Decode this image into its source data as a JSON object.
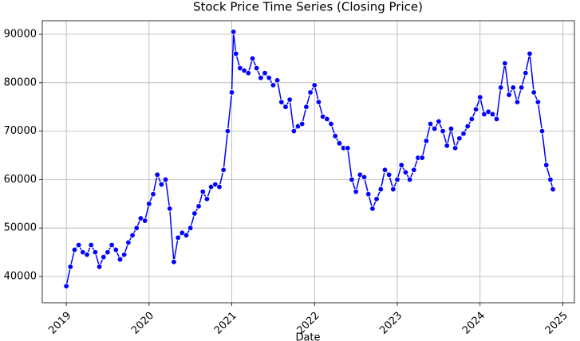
{
  "chart_data": {
    "type": "line",
    "title": "Stock Price Time Series (Closing Price)",
    "x_label": "Date",
    "x": [
      2019.0,
      2019.05,
      2019.1,
      2019.15,
      2019.2,
      2019.25,
      2019.3,
      2019.35,
      2019.4,
      2019.45,
      2019.5,
      2019.55,
      2019.6,
      2019.65,
      2019.7,
      2019.75,
      2019.8,
      2019.85,
      2019.9,
      2019.95,
      2020.0,
      2020.05,
      2020.1,
      2020.15,
      2020.2,
      2020.25,
      2020.3,
      2020.35,
      2020.4,
      2020.45,
      2020.5,
      2020.55,
      2020.6,
      2020.65,
      2020.7,
      2020.75,
      2020.8,
      2020.85,
      2020.9,
      2020.95,
      2021.0,
      2021.02,
      2021.05,
      2021.1,
      2021.15,
      2021.2,
      2021.25,
      2021.3,
      2021.35,
      2021.4,
      2021.45,
      2021.5,
      2021.55,
      2021.6,
      2021.65,
      2021.7,
      2021.75,
      2021.8,
      2021.85,
      2021.9,
      2021.95,
      2022.0,
      2022.05,
      2022.1,
      2022.15,
      2022.2,
      2022.25,
      2022.3,
      2022.35,
      2022.4,
      2022.45,
      2022.5,
      2022.55,
      2022.6,
      2022.65,
      2022.7,
      2022.75,
      2022.8,
      2022.85,
      2022.9,
      2022.95,
      2023.0,
      2023.05,
      2023.1,
      2023.15,
      2023.2,
      2023.25,
      2023.3,
      2023.35,
      2023.4,
      2023.45,
      2023.5,
      2023.55,
      2023.6,
      2023.65,
      2023.7,
      2023.75,
      2023.8,
      2023.85,
      2023.9,
      2023.95,
      2024.0,
      2024.05,
      2024.1,
      2024.15,
      2024.2,
      2024.25,
      2024.3,
      2024.35,
      2024.4,
      2024.45,
      2024.5,
      2024.55,
      2024.6,
      2024.65,
      2024.7,
      2024.75,
      2024.8,
      2024.85,
      2024.88
    ],
    "values": [
      38000,
      42000,
      45500,
      46500,
      45000,
      44500,
      46500,
      45000,
      42000,
      44000,
      45000,
      46500,
      45500,
      43500,
      44500,
      47000,
      48500,
      50000,
      52000,
      51500,
      55000,
      57000,
      61000,
      59000,
      60000,
      54000,
      43000,
      48000,
      49000,
      48500,
      50000,
      53000,
      54500,
      57500,
      56000,
      58500,
      59000,
      58500,
      62000,
      70000,
      78000,
      90500,
      86000,
      83000,
      82500,
      82000,
      85000,
      83000,
      81000,
      82000,
      81000,
      79500,
      80500,
      76000,
      75000,
      76500,
      70000,
      71000,
      71500,
      75000,
      78000,
      79500,
      76000,
      73000,
      72500,
      71500,
      69000,
      67500,
      66500,
      66500,
      60000,
      57500,
      61000,
      60500,
      57000,
      54000,
      56000,
      58000,
      62000,
      61000,
      58000,
      60000,
      63000,
      61500,
      60000,
      62000,
      64500,
      64500,
      68000,
      71500,
      70500,
      72000,
      70000,
      67000,
      70500,
      66500,
      68500,
      69500,
      71000,
      72500,
      74500,
      77000,
      73500,
      74000,
      73500,
      72500,
      79000,
      84000,
      77500,
      79000,
      76000,
      79000,
      82000,
      86000,
      78000,
      76000,
      70000,
      63000,
      60000,
      58000
    ],
    "color": "#0000ff",
    "xlim": [
      2018.71,
      2025.14
    ],
    "xticks": [
      2019,
      2020,
      2021,
      2022,
      2023,
      2024,
      2025
    ],
    "ylim": [
      34570,
      92800
    ],
    "yticks": [
      40000,
      50000,
      60000,
      70000,
      80000,
      90000
    ],
    "grid": true
  }
}
